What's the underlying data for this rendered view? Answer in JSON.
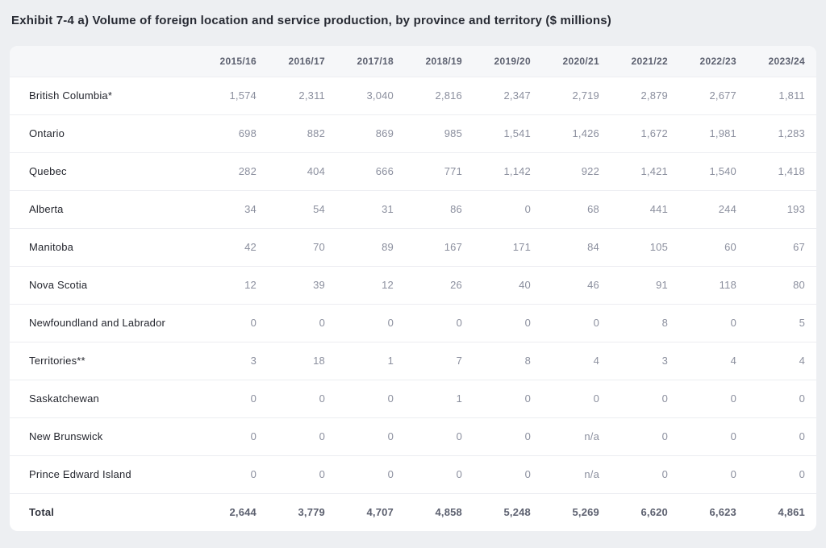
{
  "title": "Exhibit 7-4 a) Volume of foreign location and service production, by province and territory ($ millions)",
  "colors": {
    "page_background": "#edeff2",
    "card_background": "#ffffff",
    "header_background": "#f6f7f9",
    "header_text": "#5d6170",
    "label_text": "#24262e",
    "value_text": "#8b8f9e",
    "divider": "#ecedf1"
  },
  "table": {
    "columns": [
      "2015/16",
      "2016/17",
      "2017/18",
      "2018/19",
      "2019/20",
      "2020/21",
      "2021/22",
      "2022/23",
      "2023/24"
    ],
    "rows": [
      {
        "label": "British Columbia*",
        "values": [
          "1,574",
          "2,311",
          "3,040",
          "2,816",
          "2,347",
          "2,719",
          "2,879",
          "2,677",
          "1,811"
        ],
        "is_total": false
      },
      {
        "label": "Ontario",
        "values": [
          "698",
          "882",
          "869",
          "985",
          "1,541",
          "1,426",
          "1,672",
          "1,981",
          "1,283"
        ],
        "is_total": false
      },
      {
        "label": "Quebec",
        "values": [
          "282",
          "404",
          "666",
          "771",
          "1,142",
          "922",
          "1,421",
          "1,540",
          "1,418"
        ],
        "is_total": false
      },
      {
        "label": "Alberta",
        "values": [
          "34",
          "54",
          "31",
          "86",
          "0",
          "68",
          "441",
          "244",
          "193"
        ],
        "is_total": false
      },
      {
        "label": "Manitoba",
        "values": [
          "42",
          "70",
          "89",
          "167",
          "171",
          "84",
          "105",
          "60",
          "67"
        ],
        "is_total": false
      },
      {
        "label": "Nova Scotia",
        "values": [
          "12",
          "39",
          "12",
          "26",
          "40",
          "46",
          "91",
          "118",
          "80"
        ],
        "is_total": false
      },
      {
        "label": "Newfoundland and Labrador",
        "values": [
          "0",
          "0",
          "0",
          "0",
          "0",
          "0",
          "8",
          "0",
          "5"
        ],
        "is_total": false
      },
      {
        "label": "Territories**",
        "values": [
          "3",
          "18",
          "1",
          "7",
          "8",
          "4",
          "3",
          "4",
          "4"
        ],
        "is_total": false
      },
      {
        "label": "Saskatchewan",
        "values": [
          "0",
          "0",
          "0",
          "1",
          "0",
          "0",
          "0",
          "0",
          "0"
        ],
        "is_total": false
      },
      {
        "label": "New Brunswick",
        "values": [
          "0",
          "0",
          "0",
          "0",
          "0",
          "n/a",
          "0",
          "0",
          "0"
        ],
        "is_total": false
      },
      {
        "label": "Prince Edward Island",
        "values": [
          "0",
          "0",
          "0",
          "0",
          "0",
          "n/a",
          "0",
          "0",
          "0"
        ],
        "is_total": false
      },
      {
        "label": "Total",
        "values": [
          "2,644",
          "3,779",
          "4,707",
          "4,858",
          "5,248",
          "5,269",
          "6,620",
          "6,623",
          "4,861"
        ],
        "is_total": true
      }
    ]
  },
  "chart_data": {
    "type": "table",
    "title": "Exhibit 7-4 a) Volume of foreign location and service production, by province and territory ($ millions)",
    "unit": "$ millions",
    "categories": [
      "2015/16",
      "2016/17",
      "2017/18",
      "2018/19",
      "2019/20",
      "2020/21",
      "2021/22",
      "2022/23",
      "2023/24"
    ],
    "series": [
      {
        "name": "British Columbia*",
        "values": [
          1574,
          2311,
          3040,
          2816,
          2347,
          2719,
          2879,
          2677,
          1811
        ]
      },
      {
        "name": "Ontario",
        "values": [
          698,
          882,
          869,
          985,
          1541,
          1426,
          1672,
          1981,
          1283
        ]
      },
      {
        "name": "Quebec",
        "values": [
          282,
          404,
          666,
          771,
          1142,
          922,
          1421,
          1540,
          1418
        ]
      },
      {
        "name": "Alberta",
        "values": [
          34,
          54,
          31,
          86,
          0,
          68,
          441,
          244,
          193
        ]
      },
      {
        "name": "Manitoba",
        "values": [
          42,
          70,
          89,
          167,
          171,
          84,
          105,
          60,
          67
        ]
      },
      {
        "name": "Nova Scotia",
        "values": [
          12,
          39,
          12,
          26,
          40,
          46,
          91,
          118,
          80
        ]
      },
      {
        "name": "Newfoundland and Labrador",
        "values": [
          0,
          0,
          0,
          0,
          0,
          0,
          8,
          0,
          5
        ]
      },
      {
        "name": "Territories**",
        "values": [
          3,
          18,
          1,
          7,
          8,
          4,
          3,
          4,
          4
        ]
      },
      {
        "name": "Saskatchewan",
        "values": [
          0,
          0,
          0,
          1,
          0,
          0,
          0,
          0,
          0
        ]
      },
      {
        "name": "New Brunswick",
        "values": [
          0,
          0,
          0,
          0,
          0,
          "n/a",
          0,
          0,
          0
        ]
      },
      {
        "name": "Prince Edward Island",
        "values": [
          0,
          0,
          0,
          0,
          0,
          "n/a",
          0,
          0,
          0
        ]
      },
      {
        "name": "Total",
        "values": [
          2644,
          3779,
          4707,
          4858,
          5248,
          5269,
          6620,
          6623,
          4861
        ]
      }
    ]
  }
}
